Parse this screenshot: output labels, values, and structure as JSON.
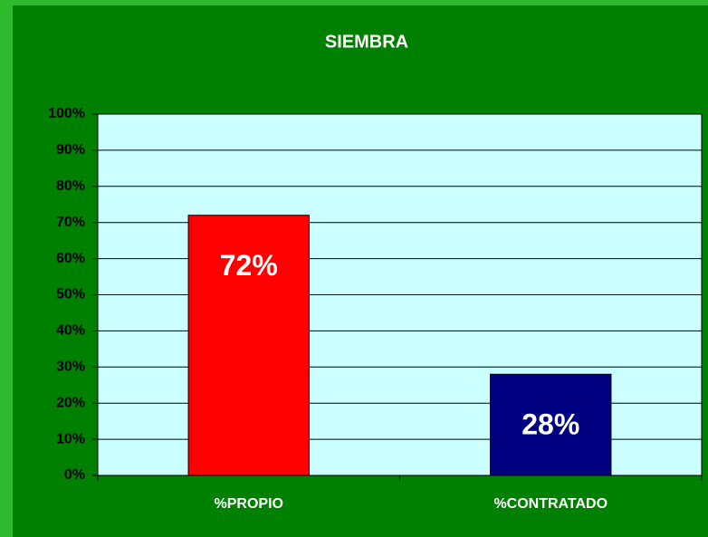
{
  "chart_data": {
    "type": "bar",
    "title": "SIEMBRA",
    "categories": [
      "%PROPIO",
      "%CONTRATADO"
    ],
    "values": [
      72,
      28
    ],
    "value_labels": [
      "72%",
      "28%"
    ],
    "colors": [
      "#ff0000",
      "#000080"
    ],
    "ylim": [
      0,
      100
    ],
    "yticks": [
      {
        "value": 0,
        "label": "0%"
      },
      {
        "value": 10,
        "label": "10%"
      },
      {
        "value": 20,
        "label": "20%"
      },
      {
        "value": 30,
        "label": "30%"
      },
      {
        "value": 40,
        "label": "40%"
      },
      {
        "value": 50,
        "label": "50%"
      },
      {
        "value": 60,
        "label": "60%"
      },
      {
        "value": 70,
        "label": "70%"
      },
      {
        "value": 80,
        "label": "80%"
      },
      {
        "value": 90,
        "label": "90%"
      },
      {
        "value": 100,
        "label": "100%"
      }
    ],
    "grid": true
  }
}
